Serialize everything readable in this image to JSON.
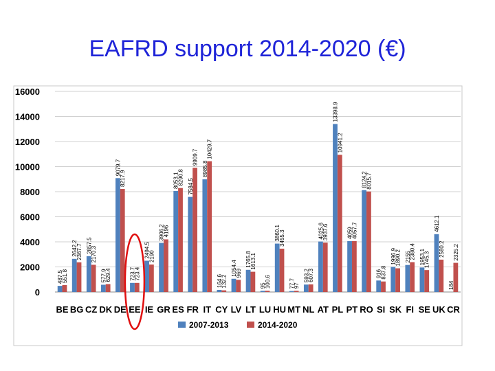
{
  "slide": {
    "title": "EAFRD support 2014-2020 (€)"
  },
  "colors": {
    "series_2007": "#4f81bd",
    "series_2014": "#c0504d",
    "highlight": "#e01010",
    "title": "#1f24d8"
  },
  "chart_data": {
    "type": "bar",
    "title": "",
    "xlabel": "",
    "ylabel": "",
    "ylim": [
      0,
      16000
    ],
    "yticks": [
      "0",
      "2000",
      "4000",
      "6000",
      "8000",
      "10000",
      "12000",
      "14000",
      "16000"
    ],
    "grid": true,
    "legend": "bottom",
    "categories": [
      "BE",
      "BG",
      "CZ",
      "DK",
      "DE",
      "EE",
      "IE",
      "GR",
      "ES",
      "FR",
      "IT",
      "CY",
      "LV",
      "LT",
      "LU",
      "HU",
      "MT",
      "NL",
      "AT",
      "PL",
      "PT",
      "RO",
      "SI",
      "SK",
      "FI",
      "SE",
      "UK",
      "CR"
    ],
    "series": [
      {
        "name": "2007-2013",
        "values": [
          487.5,
          2642.2,
          2857.5,
          577.9,
          9079.7,
          723.7,
          2494.5,
          3906.2,
          8053.1,
          7584.5,
          8985.8,
          164.6,
          1054.4,
          1765.8,
          95,
          3860.1,
          77.7,
          593.2,
          4025.6,
          13398.9,
          4059,
          8124.2,
          916,
          1996.9,
          2155,
          1953.1,
          4612.1,
          0
        ],
        "labels": [
          "487.5",
          "2642.2",
          "2857.5",
          "577.9",
          "9079.7",
          "723.7",
          "2494.5",
          "3906.2",
          "8053.1",
          "7584.5",
          "8985.8",
          "164.6",
          "1054.4",
          "1765.8",
          "95",
          "3860.1",
          "77.7",
          "593.2",
          "4025.6",
          "13398.9",
          "4059",
          "8124.2",
          "916",
          "1996.9",
          "2155",
          "1953.1",
          "4612.1",
          ""
        ]
      },
      {
        "name": "2014-2020",
        "values": [
          551.8,
          2367.7,
          2170.3,
          629.4,
          8217.9,
          723.4,
          2190,
          4196,
          8290.8,
          9909.7,
          10429.7,
          132.2,
          969,
          1613.1,
          100.6,
          3455.3,
          97,
          607.3,
          3937.6,
          10941.2,
          4057.7,
          8015.7,
          837.8,
          1890.2,
          2380.4,
          1745.3,
          2580.2,
          2325.2
        ],
        "labels": [
          "551.8",
          "2367.7",
          "2170.3",
          "629.4",
          "8217.9",
          "723.4",
          "2190",
          "4196",
          "8290.8",
          "9909.7",
          "10429.7",
          "132.2",
          "969",
          "1613.1",
          "100.6",
          "3455.3",
          "97",
          "607.3",
          "3937.6",
          "10941.2",
          "4057.7",
          "8015.7",
          "837.8",
          "1890.2",
          "2380.4",
          "1745.3",
          "2580.2",
          "2325.2"
        ]
      }
    ],
    "extra_labels": [
      {
        "category": "CR",
        "text": "184"
      }
    ],
    "annotations": [
      {
        "type": "ellipse-highlight",
        "category": "EE"
      }
    ]
  }
}
